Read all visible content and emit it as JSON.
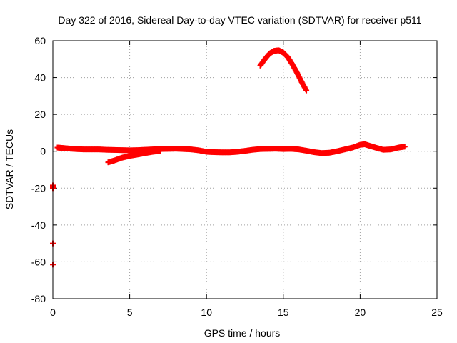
{
  "chart_data": {
    "type": "scatter",
    "title": "Day 322 of 2016, Sidereal Day-to-day VTEC variation (SDTVAR) for receiver p511",
    "xlabel": "GPS time / hours",
    "ylabel": "SDTVAR / TECUs",
    "xlim": [
      0,
      25
    ],
    "ylim": [
      -80,
      60
    ],
    "x_ticks": [
      0,
      5,
      10,
      15,
      20,
      25
    ],
    "y_ticks": [
      -80,
      -60,
      -40,
      -20,
      0,
      20,
      40,
      60
    ],
    "grid": true,
    "marker": "+",
    "series_color": "#ff0000",
    "series": [
      {
        "points": [
          [
            0.0,
            -18.5
          ],
          [
            0.0,
            -20.0
          ],
          [
            0.0,
            -50.0
          ],
          [
            0.0,
            -61.5
          ],
          [
            0.3,
            2.0
          ],
          [
            0.6,
            1.8
          ],
          [
            1.0,
            1.5
          ],
          [
            1.5,
            1.2
          ],
          [
            2.0,
            1.0
          ],
          [
            2.5,
            1.0
          ],
          [
            3.0,
            1.0
          ],
          [
            3.5,
            0.8
          ],
          [
            4.0,
            0.7
          ],
          [
            4.5,
            0.6
          ],
          [
            5.0,
            0.5
          ],
          [
            5.5,
            0.6
          ],
          [
            6.0,
            0.8
          ],
          [
            6.5,
            1.0
          ],
          [
            7.0,
            1.2
          ],
          [
            7.5,
            1.3
          ],
          [
            8.0,
            1.4
          ],
          [
            8.5,
            1.2
          ],
          [
            9.0,
            1.0
          ],
          [
            9.5,
            0.5
          ],
          [
            10.0,
            -0.3
          ],
          [
            10.5,
            -0.5
          ],
          [
            11.0,
            -0.6
          ],
          [
            11.5,
            -0.6
          ],
          [
            12.0,
            -0.3
          ],
          [
            12.5,
            0.2
          ],
          [
            13.0,
            0.8
          ],
          [
            13.5,
            1.2
          ],
          [
            14.0,
            1.3
          ],
          [
            14.5,
            1.4
          ],
          [
            15.0,
            1.2
          ],
          [
            15.5,
            1.3
          ],
          [
            16.0,
            1.0
          ],
          [
            16.5,
            0.3
          ],
          [
            17.0,
            -0.5
          ],
          [
            17.5,
            -1.0
          ],
          [
            18.0,
            -0.8
          ],
          [
            18.5,
            0.0
          ],
          [
            19.0,
            1.0
          ],
          [
            19.5,
            2.0
          ],
          [
            20.0,
            3.5
          ],
          [
            20.3,
            3.8
          ],
          [
            20.6,
            3.0
          ],
          [
            21.0,
            2.0
          ],
          [
            21.5,
            0.8
          ],
          [
            22.0,
            1.0
          ],
          [
            22.5,
            2.0
          ],
          [
            22.9,
            2.5
          ],
          [
            3.6,
            -6.0
          ],
          [
            4.0,
            -5.0
          ],
          [
            4.5,
            -3.5
          ],
          [
            5.0,
            -2.5
          ],
          [
            5.5,
            -1.8
          ],
          [
            6.0,
            -1.0
          ],
          [
            6.5,
            -0.3
          ],
          [
            7.0,
            0.2
          ],
          [
            13.5,
            46.5
          ],
          [
            13.8,
            50.0
          ],
          [
            14.1,
            53.0
          ],
          [
            14.4,
            54.5
          ],
          [
            14.7,
            54.8
          ],
          [
            15.0,
            53.5
          ],
          [
            15.3,
            51.0
          ],
          [
            15.6,
            47.0
          ],
          [
            15.9,
            42.5
          ],
          [
            16.2,
            37.5
          ],
          [
            16.5,
            33.0
          ]
        ]
      }
    ]
  }
}
